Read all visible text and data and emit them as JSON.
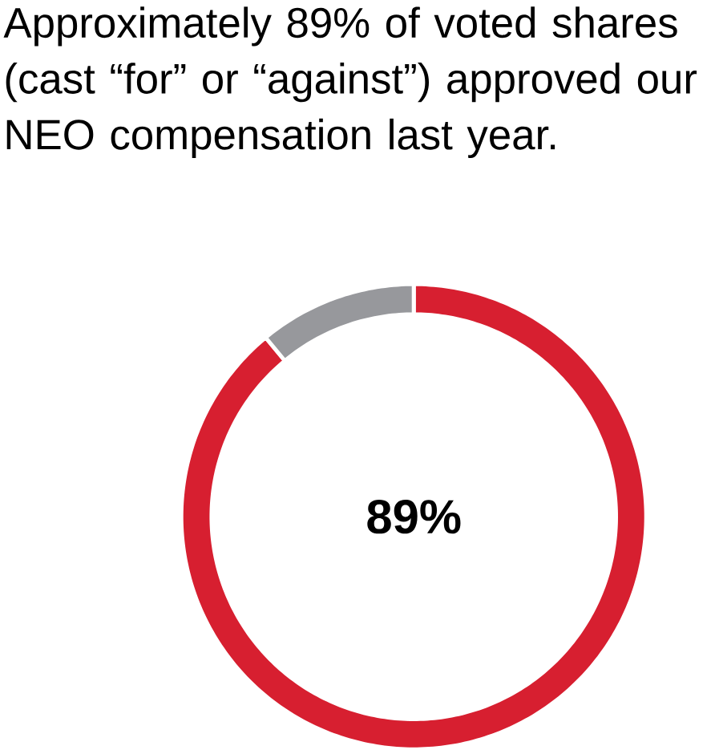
{
  "chart_data": {
    "type": "donut",
    "title": "Approximately 89% of voted shares (cast “for” or “against”) approved our NEO compensation last year.",
    "categories": [
      null,
      null
    ],
    "values": [
      89,
      11
    ],
    "colors": [
      "#d71f30",
      "#97989c"
    ],
    "value_labels": [
      "89%",
      null
    ]
  }
}
